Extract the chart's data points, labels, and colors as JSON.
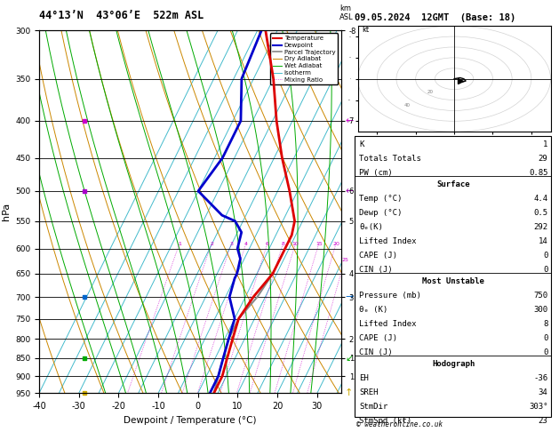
{
  "title_left": "44°13’N  43°06’E  522m ASL",
  "title_right": "09.05.2024  12GMT  (Base: 18)",
  "xlabel": "Dewpoint / Temperature (°C)",
  "ylabel_left": "hPa",
  "pressure_levels": [
    300,
    350,
    400,
    450,
    500,
    550,
    600,
    650,
    700,
    750,
    800,
    850,
    900,
    950
  ],
  "pressure_min": 300,
  "pressure_max": 950,
  "temp_min": -40,
  "temp_max": 36,
  "temp_profile_p": [
    300,
    350,
    400,
    450,
    500,
    550,
    575,
    600,
    625,
    650,
    700,
    750,
    800,
    850,
    900,
    950
  ],
  "temp_profile_t": [
    -28,
    -20,
    -14,
    -8,
    -2,
    3,
    4,
    4,
    4,
    4,
    2,
    1,
    2,
    3,
    4,
    4
  ],
  "dewp_profile_p": [
    300,
    350,
    400,
    450,
    500,
    540,
    550,
    570,
    600,
    620,
    650,
    660,
    700,
    750,
    800,
    850,
    900,
    950
  ],
  "dewp_profile_t": [
    -29,
    -28,
    -23,
    -23,
    -25,
    -16,
    -12,
    -9,
    -8,
    -6,
    -5,
    -5,
    -4,
    0,
    1,
    2,
    3,
    3
  ],
  "parcel_profile_p": [
    650,
    700,
    750,
    800,
    850,
    900,
    950
  ],
  "parcel_profile_t": [
    4,
    3,
    1,
    1,
    2,
    3,
    4
  ],
  "skew_factor": 45.0,
  "isotherm_temps": [
    -40,
    -35,
    -30,
    -25,
    -20,
    -15,
    -10,
    -5,
    0,
    5,
    10,
    15,
    20,
    25,
    30,
    35
  ],
  "dry_adiabat_base_temps": [
    -40,
    -30,
    -20,
    -10,
    0,
    10,
    20,
    30,
    40,
    50,
    60,
    70,
    80,
    90,
    100
  ],
  "wet_adiabat_base_temps": [
    -20,
    -15,
    -10,
    -5,
    0,
    5,
    10,
    15,
    20,
    25,
    30
  ],
  "mixing_ratio_values": [
    1,
    2,
    3,
    4,
    6,
    8,
    10,
    15,
    20,
    25
  ],
  "background_color": "#ffffff",
  "temp_color": "#dd0000",
  "dewp_color": "#0000cc",
  "parcel_color": "#888888",
  "isotherm_color": "#44bbcc",
  "dry_adiabat_color": "#cc8800",
  "wet_adiabat_color": "#00aa00",
  "mixing_ratio_color": "#cc00cc",
  "km_tick_pressures": [
    300,
    400,
    500,
    550,
    650,
    700,
    800,
    850,
    900
  ],
  "km_tick_labels": [
    "-8",
    "7",
    "6",
    "5",
    "4",
    "3",
    "2",
    "1LCL",
    "1"
  ],
  "wind_barb_pressures": [
    400,
    500,
    700,
    850,
    950
  ],
  "wind_barb_colors": [
    "#cc00cc",
    "#aa00cc",
    "#0066cc",
    "#00aa00",
    "#ccaa00"
  ],
  "wind_barb_styles": [
    "flag_left",
    "flag_left",
    "flag_right",
    "zigzag_down",
    "arrow_up"
  ],
  "hodograph_trace_u": [
    0,
    3,
    5,
    6,
    4,
    3
  ],
  "hodograph_trace_v": [
    0,
    1,
    0,
    -2,
    -3,
    -2
  ],
  "info_K": 1,
  "info_TT": 29,
  "info_PW": 0.85,
  "info_surf_temp": 4.4,
  "info_surf_dewp": 0.5,
  "info_surf_thetae": 292,
  "info_surf_li": 14,
  "info_surf_cape": 0,
  "info_surf_cin": 0,
  "info_mu_press": 750,
  "info_mu_thetae": 300,
  "info_mu_li": 8,
  "info_mu_cape": 0,
  "info_mu_cin": 0,
  "info_hodo_eh": -36,
  "info_hodo_sreh": 34,
  "info_hodo_stmdir": "303°",
  "info_hodo_stmspd": 23
}
